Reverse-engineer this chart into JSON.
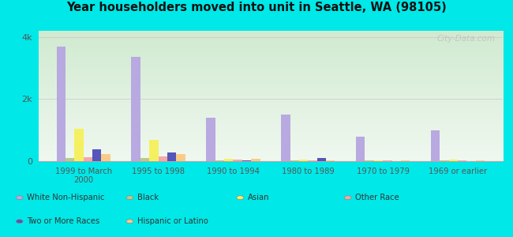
{
  "title": "Year householders moved into unit in Seattle, WA (98105)",
  "categories": [
    "1999 to March\n2000",
    "1995 to 1998",
    "1990 to 1994",
    "1980 to 1989",
    "1970 to 1979",
    "1969 or earlier"
  ],
  "series": {
    "White Non-Hispanic": [
      3700,
      3350,
      1400,
      1500,
      800,
      1000
    ],
    "Black": [
      100,
      100,
      30,
      30,
      20,
      20
    ],
    "Asian": [
      1050,
      680,
      80,
      60,
      25,
      40
    ],
    "Other Race": [
      140,
      150,
      50,
      30,
      15,
      15
    ],
    "Two or More Races": [
      370,
      280,
      20,
      90,
      10,
      10
    ],
    "Hispanic or Latino": [
      230,
      240,
      70,
      30,
      25,
      25
    ]
  },
  "colors": {
    "White Non-Hispanic": "#b8a9e0",
    "Black": "#b8cc88",
    "Asian": "#f5f060",
    "Other Race": "#f4a8a8",
    "Two or More Races": "#5555bb",
    "Hispanic or Latino": "#f8cc88"
  },
  "ylim": [
    0,
    4200
  ],
  "yticks": [
    0,
    2000,
    4000
  ],
  "ytick_labels": [
    "0",
    "2k",
    "4k"
  ],
  "outer_background": "#00e8e8",
  "plot_bg_color": "#e8f4e8",
  "watermark": "City-Data.com",
  "bar_width": 0.12
}
